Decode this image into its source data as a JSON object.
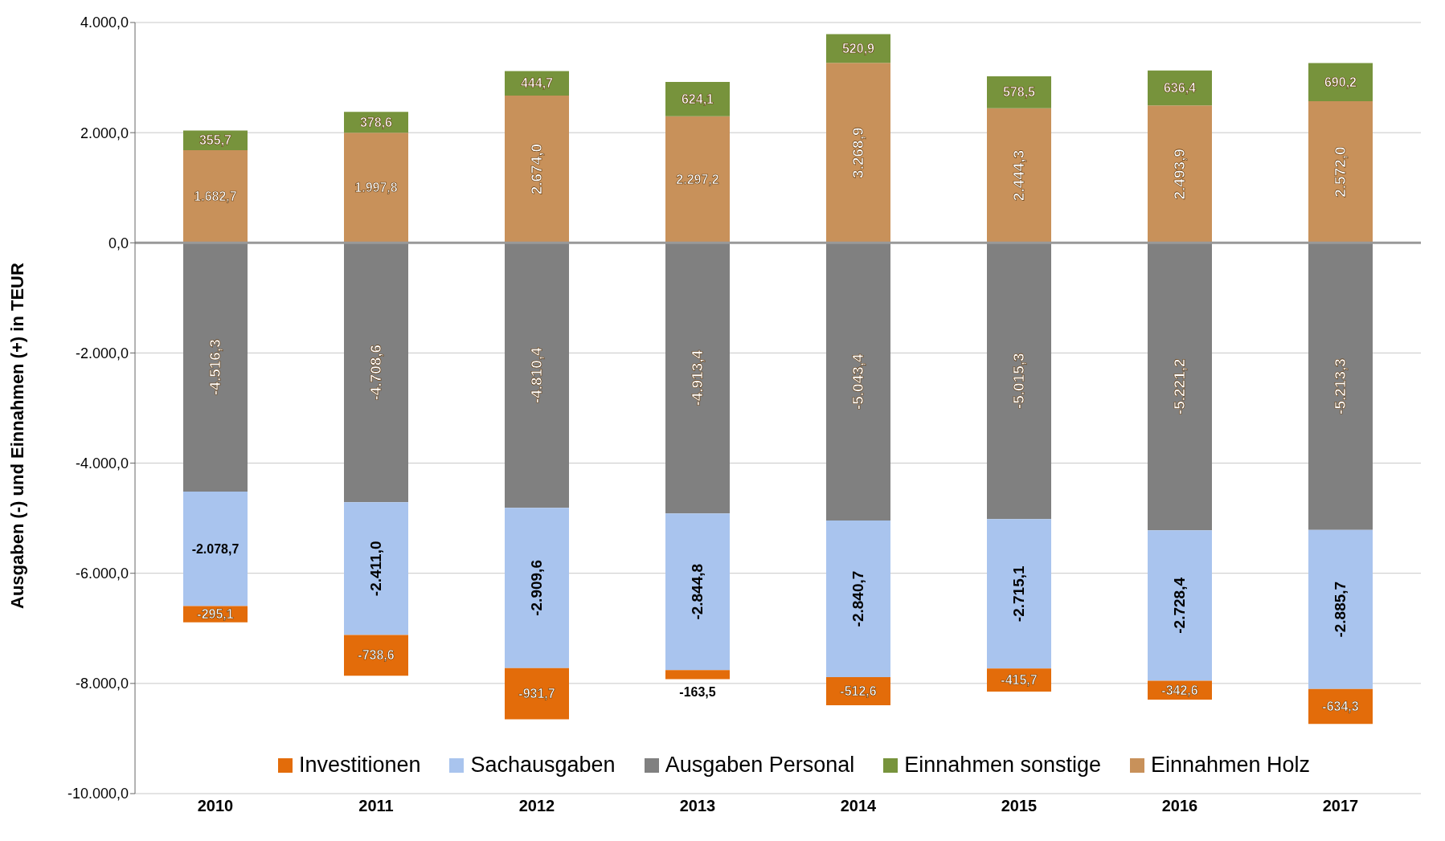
{
  "chart_data": {
    "type": "bar",
    "stacked": true,
    "ylabel": "Ausgaben (-) und Einnahmen (+) in TEUR",
    "categories": [
      "2010",
      "2011",
      "2012",
      "2013",
      "2014",
      "2015",
      "2016",
      "2017"
    ],
    "series": [
      {
        "name": "Investitionen",
        "color": "#e36c0a",
        "values": [
          -295.1,
          -738.6,
          -931.7,
          -163.5,
          -512.6,
          -415.7,
          -342.6,
          -634.3
        ],
        "value_labels": [
          "-295,1",
          "-738,6",
          "-931,7",
          "-163,5",
          "-512,6",
          "-415,7",
          "-342,6",
          "-634,3"
        ]
      },
      {
        "name": "Sachausgaben",
        "color": "#a9c4ee",
        "values": [
          -2078.7,
          -2411.0,
          -2909.6,
          -2844.8,
          -2840.7,
          -2715.1,
          -2728.4,
          -2885.7
        ],
        "value_labels": [
          "-2.078,7",
          "-2.411,0",
          "-2.909,6",
          "-2.844,8",
          "-2.840,7",
          "-2.715,1",
          "-2.728,4",
          "-2.885,7"
        ]
      },
      {
        "name": "Ausgaben Personal",
        "color": "#808080",
        "values": [
          -4516.3,
          -4708.6,
          -4810.4,
          -4913.4,
          -5043.4,
          -5015.3,
          -5221.2,
          -5213.3
        ],
        "value_labels": [
          "-4.516,3",
          "-4.708,6",
          "-4.810,4",
          "-4.913,4",
          "-5.043,4",
          "-5.015,3",
          "-5.221,2",
          "-5.213,3"
        ]
      },
      {
        "name": "Einnahmen sonstige",
        "color": "#77933c",
        "values": [
          355.7,
          378.6,
          444.7,
          624.1,
          520.9,
          578.5,
          636.4,
          690.2
        ],
        "value_labels": [
          "355,7",
          "378,6",
          "444,7",
          "624,1",
          "520,9",
          "578,5",
          "636,4",
          "690,2"
        ]
      },
      {
        "name": "Einnahmen Holz",
        "color": "#c8915a",
        "values": [
          1682.7,
          1997.8,
          2674.0,
          2297.2,
          3268.9,
          2444.3,
          2493.9,
          2572.0
        ],
        "value_labels": [
          "1.682,7",
          "1.997,8",
          "2.674,0",
          "2.297,2",
          "3.268,9",
          "2.444,3",
          "2.493,9",
          "2.572,0"
        ]
      }
    ],
    "ylim": [
      -10000,
      4000
    ],
    "yticks": [
      {
        "value": -10000,
        "label": "-10.000,0"
      },
      {
        "value": -8000,
        "label": "-8.000,0"
      },
      {
        "value": -6000,
        "label": "-6.000,0"
      },
      {
        "value": -4000,
        "label": "-4.000,0"
      },
      {
        "value": -2000,
        "label": "-2.000,0"
      },
      {
        "value": 0,
        "label": "0,0"
      },
      {
        "value": 2000,
        "label": "2.000,0"
      },
      {
        "value": 4000,
        "label": "4.000,0"
      }
    ],
    "grid": "y",
    "legend": "bottom"
  }
}
